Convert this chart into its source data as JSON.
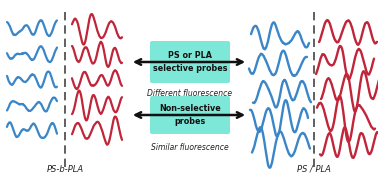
{
  "bg_color": "#ffffff",
  "box1_color": "#7de8d8",
  "box2_color": "#7de8d8",
  "box1_text": "PS or PLA\nselective probes",
  "box2_text": "Non-selective\nprobes",
  "label1": "Different fluorescence",
  "label2": "Similar fluorescence",
  "bottom_left": "PS-b-PLA",
  "bottom_right": "PS / PLA",
  "blue": "#3a86c8",
  "red": "#c0253a",
  "dashed_color": "#444444",
  "arrow_color": "#111111",
  "lw_chain": 1.6
}
